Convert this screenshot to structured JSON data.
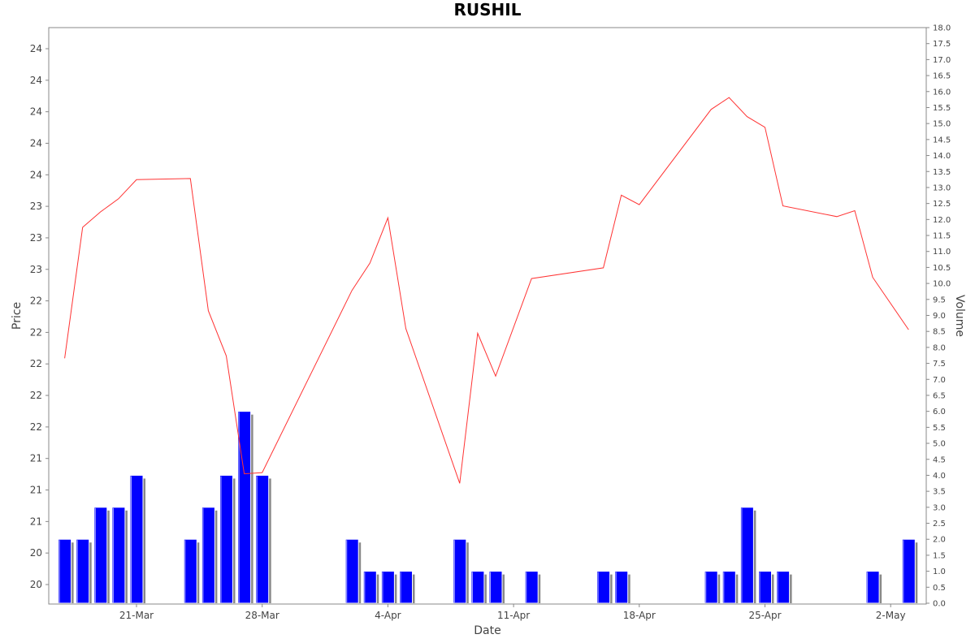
{
  "chart_data": {
    "type": "bar",
    "title": "RUSHIL",
    "xlabel": "Date",
    "ylabel": "Price",
    "y2label": "Volume",
    "x_ticks": [
      "21-Mar",
      "28-Mar",
      "4-Apr",
      "11-Apr",
      "18-Apr",
      "25-Apr",
      "2-May"
    ],
    "x_tick_dates": [
      "2019-03-21",
      "2019-03-28",
      "2019-04-04",
      "2019-04-11",
      "2019-04-18",
      "2019-04-25",
      "2019-05-02"
    ],
    "price_ticks": [
      "20",
      "20",
      "21",
      "21",
      "21",
      "22",
      "22",
      "22",
      "22",
      "22",
      "23",
      "23",
      "23",
      "24",
      "24",
      "24",
      "24",
      "24"
    ],
    "volume_ylim": [
      0,
      18
    ],
    "volume_ticks": [
      "0.0",
      "0.5",
      "1.0",
      "1.5",
      "2.0",
      "2.5",
      "3.0",
      "3.5",
      "4.0",
      "4.5",
      "5.0",
      "5.5",
      "6.0",
      "6.5",
      "7.0",
      "7.5",
      "8.0",
      "8.5",
      "9.0",
      "9.5",
      "10.0",
      "10.5",
      "11.0",
      "11.5",
      "12.0",
      "12.5",
      "13.0",
      "13.5",
      "14.0",
      "14.5",
      "15.0",
      "15.5",
      "16.0",
      "16.5",
      "17.0",
      "17.5",
      "18.0"
    ],
    "price_series": {
      "name": "Price",
      "color": "#ff3333",
      "points": [
        {
          "x": "2019-03-17",
          "y": 21.9
        },
        {
          "x": "2019-03-18",
          "y": 23.0
        },
        {
          "x": "2019-03-19",
          "y": 23.13
        },
        {
          "x": "2019-03-20",
          "y": 23.24
        },
        {
          "x": "2019-03-21",
          "y": 23.4
        },
        {
          "x": "2019-03-24",
          "y": 23.41
        },
        {
          "x": "2019-03-25",
          "y": 22.3
        },
        {
          "x": "2019-03-26",
          "y": 21.92
        },
        {
          "x": "2019-03-27",
          "y": 20.93
        },
        {
          "x": "2019-03-28",
          "y": 20.94
        },
        {
          "x": "2019-04-02",
          "y": 22.47
        },
        {
          "x": "2019-04-03",
          "y": 22.7
        },
        {
          "x": "2019-04-04",
          "y": 23.08
        },
        {
          "x": "2019-04-05",
          "y": 22.15
        },
        {
          "x": "2019-04-08",
          "y": 20.85
        },
        {
          "x": "2019-04-09",
          "y": 22.11
        },
        {
          "x": "2019-04-10",
          "y": 21.75
        },
        {
          "x": "2019-04-12",
          "y": 22.57
        },
        {
          "x": "2019-04-16",
          "y": 22.66
        },
        {
          "x": "2019-04-17",
          "y": 23.27
        },
        {
          "x": "2019-04-18",
          "y": 23.19
        },
        {
          "x": "2019-04-22",
          "y": 23.99
        },
        {
          "x": "2019-04-23",
          "y": 24.09
        },
        {
          "x": "2019-04-24",
          "y": 23.93
        },
        {
          "x": "2019-04-25",
          "y": 23.84
        },
        {
          "x": "2019-04-26",
          "y": 23.18
        },
        {
          "x": "2019-04-29",
          "y": 23.09
        },
        {
          "x": "2019-04-30",
          "y": 23.14
        },
        {
          "x": "2019-05-01",
          "y": 22.58
        },
        {
          "x": "2019-05-03",
          "y": 22.14
        }
      ]
    },
    "volume_series": {
      "name": "Volume",
      "color": "#0000ff",
      "shadow_color": "#888888",
      "points": [
        {
          "x": "2019-03-17",
          "y": 2
        },
        {
          "x": "2019-03-18",
          "y": 2
        },
        {
          "x": "2019-03-19",
          "y": 3
        },
        {
          "x": "2019-03-20",
          "y": 3
        },
        {
          "x": "2019-03-21",
          "y": 4
        },
        {
          "x": "2019-03-24",
          "y": 2
        },
        {
          "x": "2019-03-25",
          "y": 3
        },
        {
          "x": "2019-03-26",
          "y": 4
        },
        {
          "x": "2019-03-27",
          "y": 6
        },
        {
          "x": "2019-03-28",
          "y": 4
        },
        {
          "x": "2019-04-02",
          "y": 2
        },
        {
          "x": "2019-04-03",
          "y": 1
        },
        {
          "x": "2019-04-04",
          "y": 1
        },
        {
          "x": "2019-04-05",
          "y": 1
        },
        {
          "x": "2019-04-08",
          "y": 2
        },
        {
          "x": "2019-04-09",
          "y": 1
        },
        {
          "x": "2019-04-10",
          "y": 1
        },
        {
          "x": "2019-04-12",
          "y": 1
        },
        {
          "x": "2019-04-16",
          "y": 1
        },
        {
          "x": "2019-04-17",
          "y": 1
        },
        {
          "x": "2019-04-22",
          "y": 1
        },
        {
          "x": "2019-04-23",
          "y": 1
        },
        {
          "x": "2019-04-24",
          "y": 3
        },
        {
          "x": "2019-04-25",
          "y": 1
        },
        {
          "x": "2019-04-26",
          "y": 1
        },
        {
          "x": "2019-05-01",
          "y": 1
        },
        {
          "x": "2019-05-03",
          "y": 2
        }
      ]
    },
    "grid": false,
    "legend": "none"
  }
}
